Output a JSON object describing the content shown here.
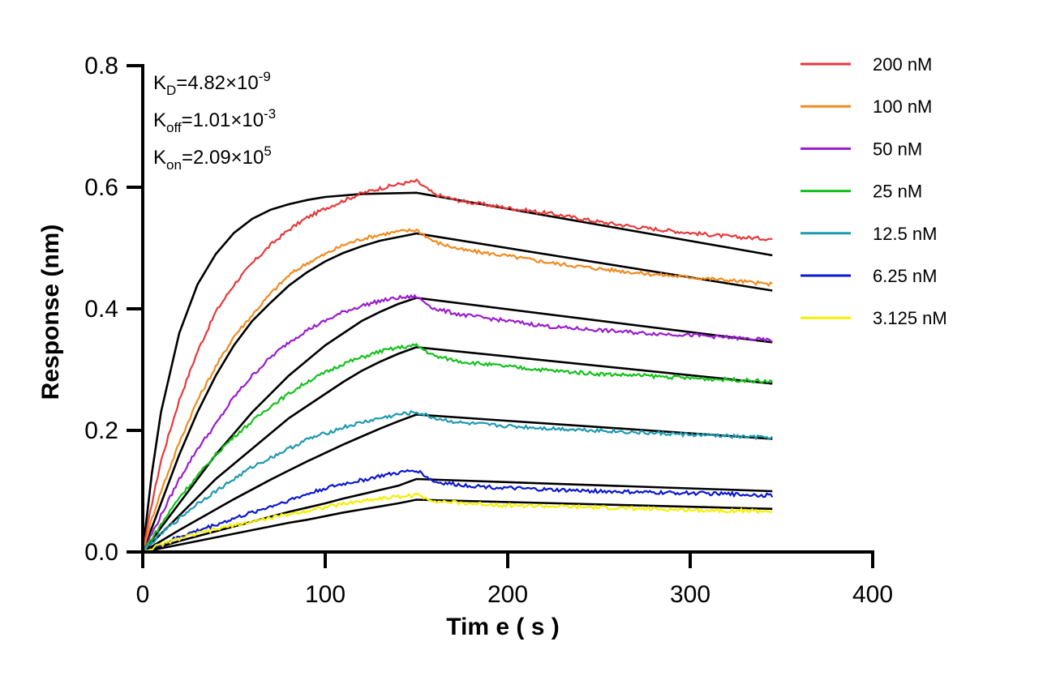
{
  "chart_data": {
    "type": "line",
    "xlabel": "Tim e ( s )",
    "ylabel": "Response (nm)",
    "xlim": [
      0,
      400
    ],
    "ylim": [
      0,
      0.8
    ],
    "x_ticks": [
      "0",
      "100",
      "200",
      "300",
      "400"
    ],
    "y_ticks": [
      "0.0",
      "0.2",
      "0.4",
      "0.6",
      "0.8"
    ],
    "grid": false,
    "legend_position": "top-right",
    "association_end_s": 150,
    "end_s": 345,
    "annotations": [
      {
        "main": "K",
        "sub": "D",
        "rest": "=4.82×10",
        "sup": "-9"
      },
      {
        "main": "K",
        "sub": "off",
        "rest": "=1.01×10",
        "sup": "-3"
      },
      {
        "main": "K",
        "sub": "on",
        "rest": "=2.09×10",
        "sup": "5"
      }
    ],
    "fit_color": "#000000",
    "series": [
      {
        "name": "200 nM",
        "color": "#e8393a",
        "points": [
          [
            0,
            0.0
          ],
          [
            5,
            0.08
          ],
          [
            10,
            0.15
          ],
          [
            20,
            0.25
          ],
          [
            30,
            0.33
          ],
          [
            40,
            0.395
          ],
          [
            50,
            0.44
          ],
          [
            60,
            0.475
          ],
          [
            70,
            0.505
          ],
          [
            80,
            0.53
          ],
          [
            90,
            0.55
          ],
          [
            100,
            0.565
          ],
          [
            110,
            0.578
          ],
          [
            120,
            0.59
          ],
          [
            130,
            0.598
          ],
          [
            140,
            0.605
          ],
          [
            150,
            0.61
          ],
          [
            160,
            0.588
          ],
          [
            175,
            0.577
          ],
          [
            200,
            0.566
          ],
          [
            225,
            0.556
          ],
          [
            250,
            0.543
          ],
          [
            275,
            0.533
          ],
          [
            300,
            0.525
          ],
          [
            325,
            0.518
          ],
          [
            345,
            0.515
          ]
        ],
        "fit": [
          [
            0,
            0.0
          ],
          [
            5,
            0.13
          ],
          [
            10,
            0.23
          ],
          [
            20,
            0.36
          ],
          [
            30,
            0.44
          ],
          [
            40,
            0.49
          ],
          [
            50,
            0.525
          ],
          [
            60,
            0.548
          ],
          [
            70,
            0.563
          ],
          [
            80,
            0.572
          ],
          [
            90,
            0.579
          ],
          [
            100,
            0.584
          ],
          [
            120,
            0.589
          ],
          [
            150,
            0.591
          ],
          [
            345,
            0.488
          ]
        ]
      },
      {
        "name": "100 nM",
        "color": "#f28a1e",
        "points": [
          [
            0,
            0.0
          ],
          [
            5,
            0.055
          ],
          [
            10,
            0.1
          ],
          [
            20,
            0.18
          ],
          [
            30,
            0.25
          ],
          [
            40,
            0.305
          ],
          [
            50,
            0.355
          ],
          [
            60,
            0.39
          ],
          [
            70,
            0.425
          ],
          [
            80,
            0.455
          ],
          [
            90,
            0.475
          ],
          [
            100,
            0.49
          ],
          [
            110,
            0.505
          ],
          [
            120,
            0.515
          ],
          [
            130,
            0.522
          ],
          [
            140,
            0.527
          ],
          [
            150,
            0.53
          ],
          [
            160,
            0.51
          ],
          [
            175,
            0.497
          ],
          [
            200,
            0.487
          ],
          [
            225,
            0.475
          ],
          [
            250,
            0.466
          ],
          [
            275,
            0.458
          ],
          [
            300,
            0.452
          ],
          [
            325,
            0.446
          ],
          [
            345,
            0.44
          ]
        ],
        "fit": [
          [
            0,
            0.0
          ],
          [
            5,
            0.04
          ],
          [
            10,
            0.08
          ],
          [
            20,
            0.16
          ],
          [
            30,
            0.23
          ],
          [
            40,
            0.29
          ],
          [
            50,
            0.34
          ],
          [
            60,
            0.38
          ],
          [
            70,
            0.41
          ],
          [
            80,
            0.438
          ],
          [
            90,
            0.46
          ],
          [
            100,
            0.478
          ],
          [
            110,
            0.492
          ],
          [
            120,
            0.503
          ],
          [
            130,
            0.512
          ],
          [
            140,
            0.518
          ],
          [
            150,
            0.524
          ],
          [
            345,
            0.43
          ]
        ]
      },
      {
        "name": "50 nM",
        "color": "#9a1ccf",
        "points": [
          [
            0,
            0.0
          ],
          [
            10,
            0.06
          ],
          [
            20,
            0.12
          ],
          [
            30,
            0.17
          ],
          [
            40,
            0.21
          ],
          [
            50,
            0.255
          ],
          [
            60,
            0.29
          ],
          [
            70,
            0.32
          ],
          [
            80,
            0.345
          ],
          [
            90,
            0.365
          ],
          [
            100,
            0.38
          ],
          [
            110,
            0.395
          ],
          [
            120,
            0.405
          ],
          [
            130,
            0.413
          ],
          [
            140,
            0.418
          ],
          [
            150,
            0.42
          ],
          [
            160,
            0.4
          ],
          [
            175,
            0.39
          ],
          [
            200,
            0.38
          ],
          [
            225,
            0.37
          ],
          [
            250,
            0.365
          ],
          [
            275,
            0.36
          ],
          [
            300,
            0.357
          ],
          [
            325,
            0.352
          ],
          [
            345,
            0.348
          ]
        ],
        "fit": [
          [
            0,
            0.0
          ],
          [
            10,
            0.04
          ],
          [
            20,
            0.08
          ],
          [
            30,
            0.12
          ],
          [
            40,
            0.16
          ],
          [
            50,
            0.195
          ],
          [
            60,
            0.23
          ],
          [
            70,
            0.26
          ],
          [
            80,
            0.29
          ],
          [
            90,
            0.315
          ],
          [
            100,
            0.34
          ],
          [
            110,
            0.36
          ],
          [
            120,
            0.38
          ],
          [
            130,
            0.395
          ],
          [
            140,
            0.408
          ],
          [
            150,
            0.418
          ],
          [
            345,
            0.345
          ]
        ]
      },
      {
        "name": "25 nM",
        "color": "#12c21a",
        "points": [
          [
            0,
            0.0
          ],
          [
            10,
            0.045
          ],
          [
            20,
            0.09
          ],
          [
            30,
            0.125
          ],
          [
            40,
            0.16
          ],
          [
            50,
            0.19
          ],
          [
            60,
            0.215
          ],
          [
            70,
            0.24
          ],
          [
            80,
            0.26
          ],
          [
            90,
            0.28
          ],
          [
            100,
            0.295
          ],
          [
            110,
            0.31
          ],
          [
            120,
            0.32
          ],
          [
            130,
            0.33
          ],
          [
            140,
            0.336
          ],
          [
            150,
            0.34
          ],
          [
            160,
            0.322
          ],
          [
            175,
            0.313
          ],
          [
            200,
            0.305
          ],
          [
            225,
            0.298
          ],
          [
            250,
            0.293
          ],
          [
            275,
            0.29
          ],
          [
            300,
            0.286
          ],
          [
            325,
            0.283
          ],
          [
            345,
            0.28
          ]
        ],
        "fit": [
          [
            0,
            0.0
          ],
          [
            10,
            0.03
          ],
          [
            20,
            0.06
          ],
          [
            30,
            0.09
          ],
          [
            40,
            0.12
          ],
          [
            50,
            0.145
          ],
          [
            60,
            0.17
          ],
          [
            70,
            0.195
          ],
          [
            80,
            0.22
          ],
          [
            90,
            0.24
          ],
          [
            100,
            0.26
          ],
          [
            110,
            0.28
          ],
          [
            120,
            0.298
          ],
          [
            130,
            0.313
          ],
          [
            140,
            0.326
          ],
          [
            150,
            0.337
          ],
          [
            345,
            0.277
          ]
        ]
      },
      {
        "name": "12.5 nM",
        "color": "#1d9ab0",
        "points": [
          [
            0,
            0.0
          ],
          [
            10,
            0.03
          ],
          [
            20,
            0.055
          ],
          [
            30,
            0.08
          ],
          [
            40,
            0.1
          ],
          [
            50,
            0.12
          ],
          [
            60,
            0.14
          ],
          [
            70,
            0.155
          ],
          [
            80,
            0.17
          ],
          [
            90,
            0.185
          ],
          [
            100,
            0.195
          ],
          [
            110,
            0.205
          ],
          [
            120,
            0.213
          ],
          [
            130,
            0.22
          ],
          [
            140,
            0.226
          ],
          [
            150,
            0.23
          ],
          [
            160,
            0.22
          ],
          [
            175,
            0.212
          ],
          [
            200,
            0.207
          ],
          [
            225,
            0.203
          ],
          [
            250,
            0.2
          ],
          [
            275,
            0.196
          ],
          [
            300,
            0.193
          ],
          [
            325,
            0.19
          ],
          [
            345,
            0.188
          ]
        ],
        "fit": [
          [
            0,
            0.0
          ],
          [
            10,
            0.018
          ],
          [
            20,
            0.036
          ],
          [
            30,
            0.053
          ],
          [
            40,
            0.07
          ],
          [
            50,
            0.087
          ],
          [
            60,
            0.103
          ],
          [
            70,
            0.119
          ],
          [
            80,
            0.134
          ],
          [
            90,
            0.149
          ],
          [
            100,
            0.163
          ],
          [
            110,
            0.177
          ],
          [
            120,
            0.19
          ],
          [
            130,
            0.203
          ],
          [
            140,
            0.215
          ],
          [
            150,
            0.226
          ],
          [
            345,
            0.186
          ]
        ]
      },
      {
        "name": "6.25 nM",
        "color": "#0a17d0",
        "points": [
          [
            0,
            0.0
          ],
          [
            10,
            0.012
          ],
          [
            20,
            0.025
          ],
          [
            30,
            0.035
          ],
          [
            40,
            0.045
          ],
          [
            50,
            0.055
          ],
          [
            60,
            0.065
          ],
          [
            70,
            0.075
          ],
          [
            80,
            0.085
          ],
          [
            90,
            0.095
          ],
          [
            100,
            0.105
          ],
          [
            110,
            0.112
          ],
          [
            120,
            0.118
          ],
          [
            130,
            0.125
          ],
          [
            140,
            0.13
          ],
          [
            150,
            0.135
          ],
          [
            160,
            0.115
          ],
          [
            175,
            0.11
          ],
          [
            200,
            0.105
          ],
          [
            225,
            0.102
          ],
          [
            250,
            0.1
          ],
          [
            275,
            0.098
          ],
          [
            300,
            0.097
          ],
          [
            325,
            0.095
          ],
          [
            345,
            0.093
          ]
        ],
        "fit": [
          [
            0,
            0.0
          ],
          [
            10,
            0.009
          ],
          [
            20,
            0.018
          ],
          [
            30,
            0.026
          ],
          [
            40,
            0.034
          ],
          [
            50,
            0.042
          ],
          [
            60,
            0.05
          ],
          [
            70,
            0.058
          ],
          [
            80,
            0.066
          ],
          [
            90,
            0.073
          ],
          [
            100,
            0.08
          ],
          [
            110,
            0.088
          ],
          [
            120,
            0.095
          ],
          [
            130,
            0.102
          ],
          [
            140,
            0.109
          ],
          [
            150,
            0.12
          ],
          [
            345,
            0.1
          ]
        ]
      },
      {
        "name": "3.125 nM",
        "color": "#f5f000",
        "points": [
          [
            0,
            0.0
          ],
          [
            10,
            0.012
          ],
          [
            20,
            0.022
          ],
          [
            30,
            0.03
          ],
          [
            40,
            0.037
          ],
          [
            50,
            0.044
          ],
          [
            60,
            0.05
          ],
          [
            70,
            0.056
          ],
          [
            80,
            0.062
          ],
          [
            90,
            0.068
          ],
          [
            100,
            0.074
          ],
          [
            110,
            0.079
          ],
          [
            120,
            0.084
          ],
          [
            130,
            0.088
          ],
          [
            140,
            0.091
          ],
          [
            150,
            0.094
          ],
          [
            160,
            0.084
          ],
          [
            175,
            0.08
          ],
          [
            200,
            0.077
          ],
          [
            225,
            0.075
          ],
          [
            250,
            0.073
          ],
          [
            275,
            0.071
          ],
          [
            300,
            0.069
          ],
          [
            325,
            0.068
          ],
          [
            345,
            0.067
          ]
        ],
        "fit": [
          [
            0,
            0.0
          ],
          [
            10,
            0.006
          ],
          [
            20,
            0.012
          ],
          [
            30,
            0.018
          ],
          [
            40,
            0.024
          ],
          [
            50,
            0.03
          ],
          [
            60,
            0.036
          ],
          [
            70,
            0.042
          ],
          [
            80,
            0.048
          ],
          [
            90,
            0.053
          ],
          [
            100,
            0.059
          ],
          [
            110,
            0.065
          ],
          [
            120,
            0.07
          ],
          [
            130,
            0.075
          ],
          [
            140,
            0.08
          ],
          [
            150,
            0.086
          ],
          [
            345,
            0.071
          ]
        ]
      }
    ]
  }
}
